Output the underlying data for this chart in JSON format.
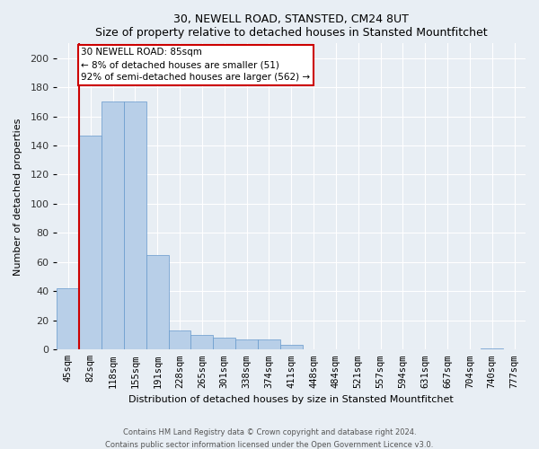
{
  "title": "30, NEWELL ROAD, STANSTED, CM24 8UT",
  "subtitle": "Size of property relative to detached houses in Stansted Mountfitchet",
  "xlabel": "Distribution of detached houses by size in Stansted Mountfitchet",
  "ylabel": "Number of detached properties",
  "footer_line1": "Contains HM Land Registry data © Crown copyright and database right 2024.",
  "footer_line2": "Contains public sector information licensed under the Open Government Licence v3.0.",
  "categories": [
    "45sqm",
    "82sqm",
    "118sqm",
    "155sqm",
    "191sqm",
    "228sqm",
    "265sqm",
    "301sqm",
    "338sqm",
    "374sqm",
    "411sqm",
    "448sqm",
    "484sqm",
    "521sqm",
    "557sqm",
    "594sqm",
    "631sqm",
    "667sqm",
    "704sqm",
    "740sqm",
    "777sqm"
  ],
  "values": [
    42,
    147,
    170,
    170,
    65,
    13,
    10,
    8,
    7,
    7,
    3,
    0,
    0,
    0,
    0,
    0,
    0,
    0,
    0,
    1,
    0
  ],
  "bar_color": "#b8cfe8",
  "bar_edge_color": "#6699cc",
  "ylim": [
    0,
    210
  ],
  "yticks": [
    0,
    20,
    40,
    60,
    80,
    100,
    120,
    140,
    160,
    180,
    200
  ],
  "marker_bin_index": 1,
  "marker_color": "#cc0000",
  "annotation_line1": "30 NEWELL ROAD: 85sqm",
  "annotation_line2": "← 8% of detached houses are smaller (51)",
  "annotation_line3": "92% of semi-detached houses are larger (562) →",
  "annotation_box_color": "#cc0000",
  "bg_color": "#e8eef4",
  "grid_color": "#ffffff"
}
